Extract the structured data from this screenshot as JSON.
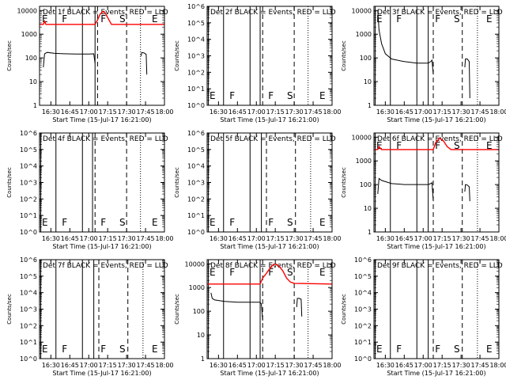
{
  "shared": {
    "xlabel": "Start Time (15-Jul-17 16:21:00)",
    "ylabel": "Counts/sec",
    "line_colors": {
      "events": "#000000",
      "lld": "#ff0000"
    }
  },
  "chart_data": [
    {
      "type": "line",
      "scale": "log",
      "title": "Det 1f BLACK = Events, RED = LLD",
      "xlim": [
        "16:21:00",
        "18:00:00"
      ],
      "xticks": [
        "16:30",
        "16:45",
        "17:00",
        "17:15",
        "17:30",
        "17:45",
        "18:00"
      ],
      "ylim": [
        1,
        15000
      ],
      "yticks": [
        "1",
        "10",
        "100",
        "1000",
        "10000"
      ],
      "letters": [
        "E",
        "F",
        "F",
        "S",
        "E"
      ],
      "solid_vlines": [
        "16:21:00",
        "16:34:00",
        "16:55:00",
        "17:05:00"
      ],
      "dashed_vlines": [
        "17:07:00",
        "17:30:00"
      ],
      "dotted_vlines": [
        "17:41:00"
      ],
      "series": [
        {
          "role": "events",
          "points": [
            [
              "16:24:00",
              40
            ],
            [
              "16:25:00",
              150
            ],
            [
              "16:27:00",
              170
            ],
            [
              "16:33:00",
              155
            ],
            [
              "16:40:00",
              150
            ],
            [
              "16:50:00",
              145
            ],
            [
              "17:00:00",
              145
            ],
            [
              "17:04:00",
              148
            ],
            [
              "17:05:00",
              60
            ]
          ]
        },
        {
          "role": "events",
          "points": [
            [
              "17:41:30",
              120
            ],
            [
              "17:42:00",
              170
            ],
            [
              "17:44:00",
              160
            ],
            [
              "17:45:30",
              140
            ],
            [
              "17:46:00",
              20
            ]
          ]
        },
        {
          "role": "lld",
          "points": [
            [
              "16:21:00",
              2600
            ],
            [
              "16:24:00",
              2600
            ],
            [
              "16:25:00",
              3500
            ],
            [
              "16:26:00",
              2600
            ],
            [
              "16:40:00",
              2600
            ],
            [
              "17:00:00",
              2600
            ],
            [
              "17:05:00",
              2600
            ],
            [
              "17:07:00",
              4000
            ],
            [
              "17:09:00",
              7000
            ],
            [
              "17:11:00",
              9000
            ],
            [
              "17:13:00",
              8000
            ],
            [
              "17:16:00",
              4000
            ],
            [
              "17:18:00",
              2600
            ],
            [
              "18:00:00",
              2600
            ]
          ]
        }
      ]
    },
    {
      "type": "line",
      "scale": "log",
      "title": "Det 2f BLACK = Events, RED = LLD",
      "xlim": [
        "16:21:00",
        "18:00:00"
      ],
      "xticks": [
        "16:30",
        "16:45",
        "17:00",
        "17:15",
        "17:30",
        "17:45",
        "18:00"
      ],
      "ylim": [
        1,
        1000000
      ],
      "yticks": [
        "10^0",
        "10^1",
        "10^2",
        "10^3",
        "10^4",
        "10^5",
        "10^6"
      ],
      "letters": [
        "E",
        "F",
        "F",
        "S",
        "E"
      ],
      "solid_vlines": [
        "16:22:00",
        "16:34:00",
        "16:55:00",
        "17:03:00"
      ],
      "dashed_vlines": [
        "17:05:00",
        "17:30:00"
      ],
      "dotted_vlines": [
        "17:41:00"
      ],
      "series": []
    },
    {
      "type": "line",
      "scale": "log",
      "title": "Det 3f BLACK = Events, RED = LLD",
      "xlim": [
        "16:21:00",
        "18:00:00"
      ],
      "xticks": [
        "16:30",
        "16:45",
        "17:00",
        "17:15",
        "17:30",
        "17:45",
        "18:00"
      ],
      "ylim": [
        1,
        15000
      ],
      "yticks": [
        "1",
        "10",
        "100",
        "1000",
        "10000"
      ],
      "letters": [
        "E",
        "F",
        "F",
        "S",
        "E"
      ],
      "solid_vlines": [
        "16:22:00",
        "16:34:00",
        "16:55:00",
        "17:04:00"
      ],
      "dashed_vlines": [
        "17:08:00",
        "17:31:00"
      ],
      "dotted_vlines": [
        "17:43:00"
      ],
      "series": [
        {
          "role": "events",
          "points": [
            [
              "16:24:00",
              10000
            ],
            [
              "16:25:00",
              1500
            ],
            [
              "16:27:00",
              400
            ],
            [
              "16:30:00",
              150
            ],
            [
              "16:35:00",
              90
            ],
            [
              "16:45:00",
              70
            ],
            [
              "16:55:00",
              60
            ],
            [
              "17:04:00",
              60
            ],
            [
              "17:06:00",
              70
            ],
            [
              "17:07:00",
              80
            ],
            [
              "17:08:00",
              20
            ]
          ]
        },
        {
          "role": "events",
          "points": [
            [
              "17:33:00",
              40
            ],
            [
              "17:33:30",
              90
            ],
            [
              "17:35:00",
              90
            ],
            [
              "17:36:30",
              70
            ],
            [
              "17:37:00",
              2
            ]
          ]
        }
      ]
    },
    {
      "type": "line",
      "scale": "log",
      "title": "Det 4f BLACK = Events, RED = LLD",
      "xlim": [
        "16:21:00",
        "18:00:00"
      ],
      "xticks": [
        "16:30",
        "16:45",
        "17:00",
        "17:15",
        "17:30",
        "17:45",
        "18:00"
      ],
      "ylim": [
        1,
        1000000
      ],
      "yticks": [
        "10^0",
        "10^1",
        "10^2",
        "10^3",
        "10^4",
        "10^5",
        "10^6"
      ],
      "letters": [
        "E",
        "F",
        "F",
        "S",
        "E"
      ],
      "solid_vlines": [
        "16:22:00",
        "16:34:00",
        "16:55:00",
        "17:03:00"
      ],
      "dashed_vlines": [
        "17:05:00",
        "17:30:00"
      ],
      "dotted_vlines": [
        "17:41:00"
      ],
      "series": []
    },
    {
      "type": "line",
      "scale": "log",
      "title": "Det 5f BLACK = Events, RED = LLD",
      "xlim": [
        "16:21:00",
        "18:00:00"
      ],
      "xticks": [
        "16:30",
        "16:45",
        "17:00",
        "17:15",
        "17:30",
        "17:45",
        "18:00"
      ],
      "ylim": [
        1,
        1000000
      ],
      "yticks": [
        "10^0",
        "10^1",
        "10^2",
        "10^3",
        "10^4",
        "10^5",
        "10^6"
      ],
      "letters": [
        "E",
        "F",
        "F",
        "S",
        "E"
      ],
      "solid_vlines": [
        "16:22:00",
        "16:34:00",
        "16:55:00",
        "17:04:00"
      ],
      "dashed_vlines": [
        "17:08:00",
        "17:31:00"
      ],
      "dotted_vlines": [
        "17:43:00"
      ],
      "series": []
    },
    {
      "type": "line",
      "scale": "log",
      "title": "Det 6f BLACK = Events, RED = LLD",
      "xlim": [
        "16:21:00",
        "18:00:00"
      ],
      "xticks": [
        "16:30",
        "16:45",
        "17:00",
        "17:15",
        "17:30",
        "17:45",
        "18:00"
      ],
      "ylim": [
        1,
        15000
      ],
      "yticks": [
        "1",
        "10",
        "100",
        "1000",
        "10000"
      ],
      "letters": [
        "E",
        "F",
        "F",
        "S",
        "E"
      ],
      "solid_vlines": [
        "16:22:00",
        "16:34:00",
        "16:55:00",
        "17:04:00"
      ],
      "dashed_vlines": [
        "17:08:00",
        "17:31:00"
      ],
      "dotted_vlines": [
        "17:43:00"
      ],
      "series": [
        {
          "role": "events",
          "points": [
            [
              "16:24:00",
              40
            ],
            [
              "16:25:00",
              180
            ],
            [
              "16:27:00",
              150
            ],
            [
              "16:35:00",
              110
            ],
            [
              "16:45:00",
              100
            ],
            [
              "17:00:00",
              100
            ],
            [
              "17:04:00",
              100
            ],
            [
              "17:06:00",
              110
            ],
            [
              "17:07:00",
              120
            ],
            [
              "17:08:00",
              20
            ]
          ]
        },
        {
          "role": "events",
          "points": [
            [
              "17:33:00",
              50
            ],
            [
              "17:33:30",
              100
            ],
            [
              "17:35:00",
              95
            ],
            [
              "17:36:30",
              80
            ],
            [
              "17:37:00",
              20
            ]
          ]
        },
        {
          "role": "lld",
          "points": [
            [
              "16:21:00",
              3000
            ],
            [
              "16:24:00",
              3000
            ],
            [
              "16:25:00",
              4000
            ],
            [
              "16:27:00",
              3000
            ],
            [
              "16:45:00",
              3000
            ],
            [
              "17:04:00",
              3000
            ],
            [
              "17:08:00",
              3000
            ],
            [
              "17:10:00",
              6000
            ],
            [
              "17:13:00",
              9000
            ],
            [
              "17:16:00",
              7000
            ],
            [
              "17:19:00",
              4000
            ],
            [
              "17:22:00",
              3000
            ],
            [
              "18:00:00",
              3000
            ]
          ]
        }
      ]
    },
    {
      "type": "line",
      "scale": "log",
      "title": "Det 7f BLACK = Events, RED = LLD",
      "xlim": [
        "16:21:00",
        "18:00:00"
      ],
      "xticks": [
        "16:30",
        "16:45",
        "17:00",
        "17:15",
        "17:30",
        "17:45",
        "18:00"
      ],
      "ylim": [
        1,
        1000000
      ],
      "yticks": [
        "10^0",
        "10^1",
        "10^2",
        "10^3",
        "10^4",
        "10^5",
        "10^6"
      ],
      "letters": [
        "E",
        "F",
        "F",
        "S",
        "E"
      ],
      "solid_vlines": [
        "16:22:00",
        "16:34:00",
        "16:55:00",
        "17:04:00"
      ],
      "dashed_vlines": [
        "17:08:00",
        "17:31:00"
      ],
      "dotted_vlines": [
        "17:43:00"
      ],
      "series": []
    },
    {
      "type": "line",
      "scale": "log",
      "title": "Det 8f BLACK = Events, RED = LLD",
      "xlim": [
        "16:21:00",
        "18:00:00"
      ],
      "xticks": [
        "16:30",
        "16:45",
        "17:00",
        "17:15",
        "17:30",
        "17:45",
        "18:00"
      ],
      "ylim": [
        1,
        15000
      ],
      "yticks": [
        "1",
        "10",
        "100",
        "1000",
        "10000"
      ],
      "letters": [
        "E",
        "F",
        "F",
        "S",
        "E"
      ],
      "solid_vlines": [
        "16:22:00",
        "16:34:00",
        "16:55:00",
        "17:03:00"
      ],
      "dashed_vlines": [
        "17:05:00",
        "17:30:00"
      ],
      "dotted_vlines": [
        "17:41:00"
      ],
      "series": [
        {
          "role": "events",
          "points": [
            [
              "16:24:00",
              600
            ],
            [
              "16:25:00",
              350
            ],
            [
              "16:27:00",
              300
            ],
            [
              "16:35:00",
              260
            ],
            [
              "16:45:00",
              240
            ],
            [
              "17:00:00",
              240
            ],
            [
              "17:03:00",
              240
            ],
            [
              "17:04:00",
              200
            ],
            [
              "17:05:00",
              40
            ]
          ]
        },
        {
          "role": "events",
          "points": [
            [
              "17:32:00",
              150
            ],
            [
              "17:32:30",
              350
            ],
            [
              "17:34:00",
              350
            ],
            [
              "17:35:30",
              320
            ],
            [
              "17:36:00",
              60
            ]
          ]
        },
        {
          "role": "lld",
          "points": [
            [
              "16:21:00",
              1400
            ],
            [
              "16:35:00",
              1400
            ],
            [
              "16:50:00",
              1400
            ],
            [
              "17:00:00",
              1400
            ],
            [
              "17:03:00",
              1400
            ],
            [
              "17:05:00",
              2500
            ],
            [
              "17:08:00",
              4000
            ],
            [
              "17:12:00",
              8000
            ],
            [
              "17:15:00",
              10000
            ],
            [
              "17:18:00",
              8000
            ],
            [
              "17:21:00",
              5000
            ],
            [
              "17:24:00",
              2500
            ],
            [
              "17:27:00",
              1700
            ],
            [
              "17:30:00",
              1500
            ],
            [
              "18:00:00",
              1400
            ]
          ]
        }
      ]
    },
    {
      "type": "line",
      "scale": "log",
      "title": "Det 9f BLACK = Events, RED = LLD",
      "xlim": [
        "16:21:00",
        "18:00:00"
      ],
      "xticks": [
        "16:30",
        "16:45",
        "17:00",
        "17:15",
        "17:30",
        "17:45",
        "18:00"
      ],
      "ylim": [
        1,
        1000000
      ],
      "yticks": [
        "10^0",
        "10^1",
        "10^2",
        "10^3",
        "10^4",
        "10^5",
        "10^6"
      ],
      "letters": [
        "E",
        "F",
        "F",
        "S",
        "E"
      ],
      "solid_vlines": [
        "16:22:00",
        "16:34:00",
        "16:55:00",
        "17:04:00"
      ],
      "dashed_vlines": [
        "17:08:00",
        "17:31:00"
      ],
      "dotted_vlines": [
        "17:43:00"
      ],
      "series": []
    }
  ]
}
